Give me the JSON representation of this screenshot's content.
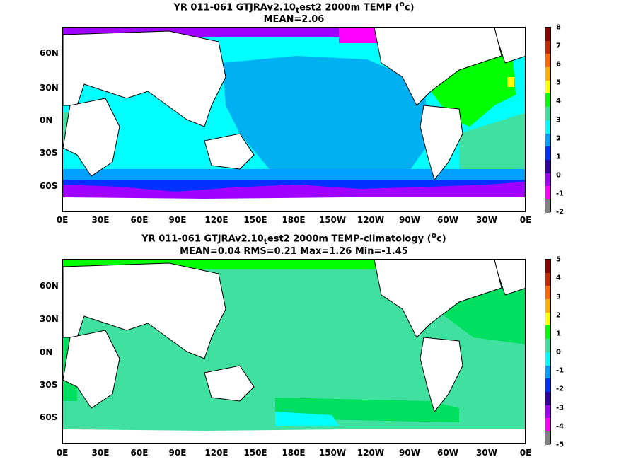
{
  "panels": [
    {
      "title_line1": "YR 011-061 GTJRAv2.10",
      "title_sub": "t",
      "title_rest": "est2 2000m TEMP (",
      "title_sup": "o",
      "title_end": "c)",
      "title_line2": "MEAN=2.06",
      "colorbar_labels": [
        "8",
        "7",
        "6",
        "5",
        "4",
        "3",
        "2",
        "1",
        "0",
        "-1",
        "-2"
      ],
      "colorbar_colors": [
        "#8b0000",
        "#c62a00",
        "#ff6600",
        "#ffb000",
        "#ffff00",
        "#00ff00",
        "#40e0a0",
        "#00ffff",
        "#00a0ff",
        "#0030ff",
        "#3000a0",
        "#a000ff",
        "#ff00ff",
        "#808080"
      ]
    },
    {
      "title_line1": "YR 011-061 GTJRAv2.10",
      "title_sub": "t",
      "title_rest": "est2 2000m TEMP-climatology (",
      "title_sup": "o",
      "title_end": "c)",
      "title_line2": "MEAN=0.04   RMS=0.21   Max=1.26   Min=-1.45",
      "colorbar_labels": [
        "5",
        "4",
        "3",
        "2",
        "1",
        "0",
        "-1",
        "-2",
        "-3",
        "-4",
        "-5"
      ],
      "colorbar_colors": [
        "#8b0000",
        "#c62a00",
        "#ff6600",
        "#ffb000",
        "#ffff00",
        "#00ff00",
        "#40e0a0",
        "#00ffff",
        "#00a0ff",
        "#0030ff",
        "#3000a0",
        "#a000ff",
        "#ff00ff",
        "#808080"
      ]
    }
  ],
  "axes": {
    "y_labels": [
      "60N",
      "30N",
      "0N",
      "30S",
      "60S"
    ],
    "x_labels": [
      "0E",
      "30E",
      "60E",
      "90E",
      "120E",
      "150E",
      "180E",
      "150W",
      "120W",
      "90W",
      "60W",
      "30W",
      "0E"
    ]
  }
}
